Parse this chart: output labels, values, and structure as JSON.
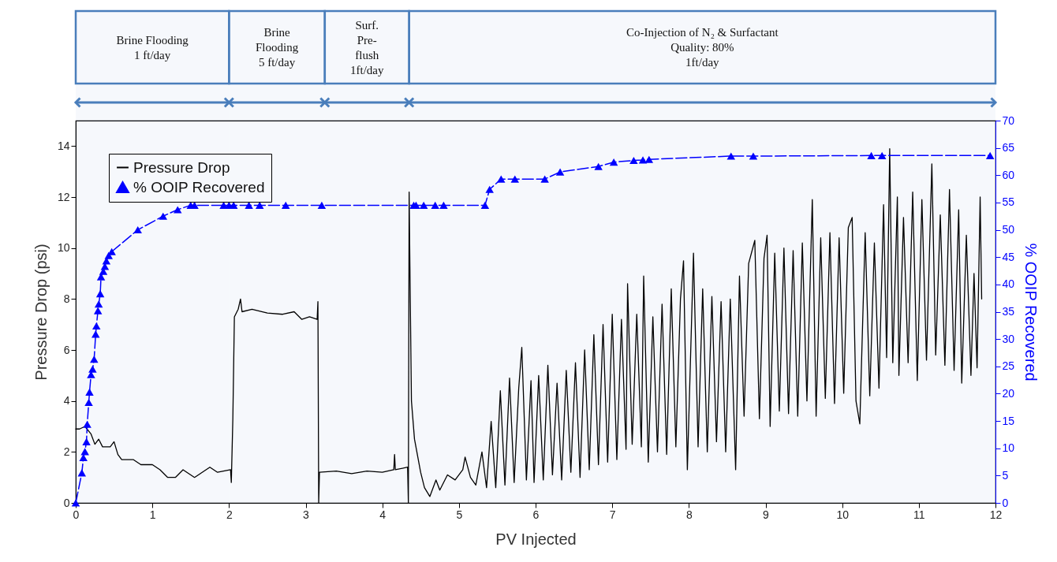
{
  "chart_data": {
    "type": "line",
    "xlabel": "PV Injected",
    "ylabel": "Pressure Drop (psi)",
    "y2label": "% OOIP Recovered",
    "xlim": [
      0,
      12
    ],
    "xticks": [
      0,
      1,
      2,
      3,
      4,
      5,
      6,
      7,
      8,
      9,
      10,
      11,
      12
    ],
    "ylim": [
      0,
      15
    ],
    "yticks": [
      0,
      2,
      4,
      6,
      8,
      10,
      12,
      14
    ],
    "y2lim": [
      0,
      70
    ],
    "y2ticks": [
      0,
      5,
      10,
      15,
      20,
      25,
      30,
      35,
      40,
      45,
      50,
      55,
      60,
      65,
      70
    ],
    "legend": "top left",
    "bands": [
      {
        "axis": "x",
        "from": 0,
        "to": 2,
        "label": "Brine Flooding\n1 ft/day",
        "color": "#4a7ebb"
      },
      {
        "axis": "x",
        "from": 2,
        "to": 3.25,
        "label": "Brine\nFlooding\n5 ft/day",
        "color": "#4a7ebb"
      },
      {
        "axis": "x",
        "from": 3.25,
        "to": 4.35,
        "label": "Surf.\nPre-\nflush\n1ft/day",
        "color": "#4a7ebb"
      },
      {
        "axis": "x",
        "from": 4.35,
        "to": 12,
        "label": "Co-Injection of N₂ & Surfactant\nQuality: 80%\n1ft/day",
        "color": "#4a7ebb"
      }
    ],
    "series": [
      {
        "name": "Pressure Drop",
        "color": "#000000",
        "marker": "none",
        "line_style": "solid",
        "x": [
          0,
          0.05,
          0.12,
          0.2,
          0.25,
          0.3,
          0.35,
          0.45,
          0.5,
          0.55,
          0.6,
          0.75,
          0.85,
          1.0,
          1.1,
          1.2,
          1.3,
          1.4,
          1.5,
          1.55,
          1.65,
          1.75,
          1.85,
          2.02,
          2.03,
          2.05,
          2.07,
          2.12,
          2.15,
          2.17,
          2.3,
          2.5,
          2.7,
          2.85,
          2.95,
          3.05,
          3.15,
          3.16,
          3.17,
          3.18,
          3.4,
          3.6,
          3.8,
          4.0,
          4.15,
          4.16,
          4.17,
          4.33,
          4.34,
          4.35,
          4.36,
          4.38,
          4.42,
          4.5,
          4.55,
          4.62,
          4.7,
          4.75,
          4.85,
          4.95,
          5.05,
          5.08,
          5.15,
          5.22,
          5.3,
          5.36,
          5.42,
          5.48,
          5.54,
          5.6,
          5.66,
          5.72,
          5.78,
          5.82,
          5.88,
          5.94,
          5.98,
          6.04,
          6.1,
          6.16,
          6.22,
          6.28,
          6.34,
          6.4,
          6.46,
          6.52,
          6.58,
          6.64,
          6.7,
          6.76,
          6.82,
          6.88,
          6.94,
          7.0,
          7.06,
          7.12,
          7.18,
          7.2,
          7.26,
          7.32,
          7.38,
          7.41,
          7.47,
          7.53,
          7.59,
          7.65,
          7.71,
          7.77,
          7.83,
          7.89,
          7.93,
          7.98,
          8.06,
          8.12,
          8.18,
          8.24,
          8.3,
          8.36,
          8.42,
          8.48,
          8.54,
          8.61,
          8.66,
          8.72,
          8.78,
          8.86,
          8.92,
          8.98,
          9.02,
          9.06,
          9.12,
          9.18,
          9.24,
          9.3,
          9.36,
          9.42,
          9.48,
          9.54,
          9.61,
          9.66,
          9.72,
          9.78,
          9.84,
          9.9,
          9.96,
          10.02,
          10.08,
          10.13,
          10.18,
          10.23,
          10.3,
          10.36,
          10.42,
          10.48,
          10.54,
          10.58,
          10.62,
          10.66,
          10.72,
          10.74,
          10.8,
          10.86,
          10.92,
          10.98,
          11.04,
          11.1,
          11.17,
          11.22,
          11.28,
          11.34,
          11.4,
          11.46,
          11.52,
          11.56,
          11.62,
          11.68,
          11.72,
          11.76,
          11.8,
          11.82
        ],
        "values": [
          2.9,
          2.9,
          3.0,
          2.7,
          2.3,
          2.5,
          2.2,
          2.2,
          2.4,
          1.9,
          1.7,
          1.7,
          1.5,
          1.5,
          1.3,
          1.0,
          1.0,
          1.3,
          1.1,
          1.0,
          1.2,
          1.4,
          1.2,
          1.3,
          0.8,
          3.3,
          7.3,
          7.6,
          8.0,
          7.5,
          7.6,
          7.45,
          7.4,
          7.5,
          7.2,
          7.3,
          7.2,
          7.9,
          0,
          1.2,
          1.25,
          1.15,
          1.25,
          1.2,
          1.3,
          1.9,
          1.3,
          1.4,
          0,
          12.2,
          9.3,
          4.0,
          2.5,
          1.2,
          0.6,
          0.25,
          0.9,
          0.5,
          1.1,
          0.9,
          1.3,
          1.8,
          1.0,
          0.7,
          2.0,
          0.6,
          3.2,
          0.6,
          4.4,
          0.7,
          4.9,
          0.8,
          4.5,
          6.1,
          0.9,
          4.8,
          0.8,
          5.0,
          0.9,
          5.4,
          1.1,
          4.7,
          0.9,
          5.2,
          1.2,
          5.5,
          1.0,
          6.0,
          1.3,
          6.6,
          1.5,
          7.0,
          1.6,
          7.4,
          1.7,
          7.2,
          2.1,
          8.6,
          2.3,
          7.4,
          2.2,
          8.9,
          1.6,
          7.3,
          2.0,
          7.8,
          1.9,
          8.4,
          2.2,
          8.0,
          9.5,
          1.3,
          9.8,
          2.2,
          8.4,
          2.0,
          8.1,
          2.4,
          7.9,
          2.0,
          8.0,
          1.3,
          8.9,
          3.4,
          9.4,
          10.3,
          3.3,
          9.6,
          10.5,
          3.0,
          9.8,
          3.6,
          10.0,
          3.5,
          9.9,
          3.4,
          10.2,
          4.0,
          11.9,
          3.4,
          10.4,
          4.1,
          10.6,
          3.9,
          10.4,
          4.3,
          10.8,
          11.2,
          4.0,
          3.1,
          10.6,
          4.2,
          10.2,
          4.5,
          11.7,
          5.7,
          13.9,
          5.5,
          12.0,
          5.0,
          11.2,
          5.5,
          12.2,
          4.8,
          11.9,
          5.6,
          13.3,
          5.8,
          11.3,
          5.4,
          12.3,
          5.2,
          11.5,
          4.7,
          10.5,
          5.0,
          9.0,
          5.3,
          12.0,
          8.0
        ]
      },
      {
        "name": "% OOIP Recovered",
        "color": "#0000ff",
        "axis": "y2",
        "marker": "triangle",
        "line_style": "dashed",
        "x": [
          0,
          0.08,
          0.1,
          0.12,
          0.14,
          0.15,
          0.17,
          0.18,
          0.2,
          0.22,
          0.24,
          0.26,
          0.27,
          0.29,
          0.3,
          0.32,
          0.33,
          0.36,
          0.38,
          0.4,
          0.43,
          0.47,
          0.81,
          1.14,
          1.33,
          1.5,
          1.55,
          1.93,
          2.0,
          2.06,
          2.26,
          2.4,
          2.74,
          3.21,
          4.41,
          4.44,
          4.54,
          4.69,
          4.8,
          5.34,
          5.4,
          5.55,
          5.73,
          6.12,
          6.32,
          6.82,
          7.02,
          7.28,
          7.4,
          7.48,
          8.55,
          8.84,
          10.38,
          10.52,
          11.93
        ],
        "values": [
          0,
          5.5,
          8.3,
          9.4,
          11.2,
          14.4,
          18.4,
          20.3,
          23.5,
          24.5,
          26.3,
          30.9,
          32.4,
          35.2,
          36.4,
          38.3,
          41.4,
          42.4,
          43.3,
          44.3,
          45.3,
          46,
          50,
          52.5,
          53.7,
          54.5,
          54.5,
          54.5,
          54.5,
          54.5,
          54.5,
          54.5,
          54.5,
          54.5,
          54.5,
          54.5,
          54.5,
          54.5,
          54.5,
          54.5,
          57.4,
          59.3,
          59.3,
          59.3,
          60.6,
          61.6,
          62.4,
          62.7,
          62.8,
          62.9,
          63.5,
          63.5,
          63.6,
          63.6,
          63.6
        ]
      }
    ]
  }
}
